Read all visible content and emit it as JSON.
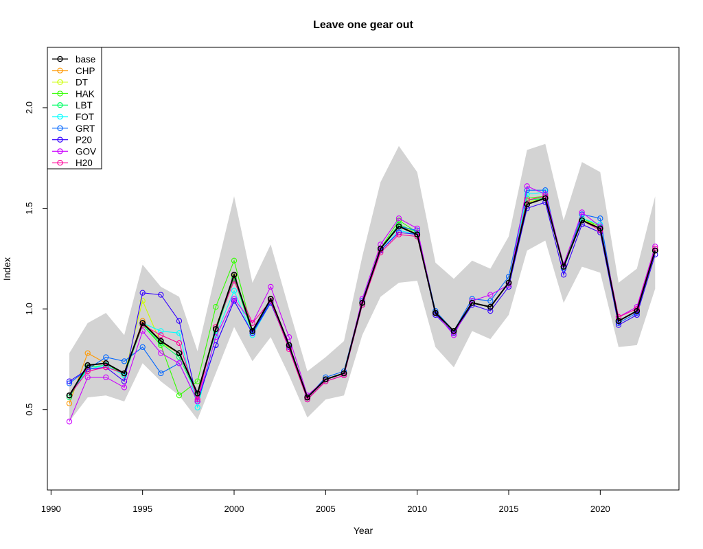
{
  "chart_data": {
    "type": "line",
    "title": "Leave one gear out",
    "xlabel": "Year",
    "ylabel": "Index",
    "xlim": [
      1989.8,
      2024.3
    ],
    "ylim": [
      0.1,
      2.3
    ],
    "x_ticks": [
      1990,
      1995,
      2000,
      2005,
      2010,
      2015,
      2020
    ],
    "y_ticks": [
      0.5,
      1.0,
      1.5,
      2.0
    ],
    "y_tick_labels": [
      "0.5",
      "1.0",
      "1.5",
      "2.0"
    ],
    "legend_position": "top-left",
    "grid": false,
    "x": [
      1991,
      1992,
      1993,
      1994,
      1995,
      1996,
      1997,
      1998,
      1999,
      2000,
      2001,
      2002,
      2003,
      2004,
      2005,
      2006,
      2007,
      2008,
      2009,
      2010,
      2011,
      2012,
      2013,
      2014,
      2015,
      2016,
      2017,
      2018,
      2019,
      2020,
      2021,
      2022,
      2023
    ],
    "band": {
      "color": "#d3d3d3",
      "upper": [
        0.78,
        0.93,
        0.98,
        0.87,
        1.22,
        1.11,
        1.06,
        0.79,
        1.18,
        1.56,
        1.13,
        1.32,
        1.0,
        0.69,
        0.76,
        0.84,
        1.26,
        1.63,
        1.81,
        1.68,
        1.23,
        1.15,
        1.24,
        1.2,
        1.36,
        1.79,
        1.82,
        1.44,
        1.73,
        1.68,
        1.13,
        1.2,
        1.56
      ],
      "lower": [
        0.44,
        0.56,
        0.57,
        0.54,
        0.73,
        0.64,
        0.57,
        0.45,
        0.68,
        0.91,
        0.74,
        0.86,
        0.67,
        0.46,
        0.55,
        0.57,
        0.87,
        1.06,
        1.13,
        1.14,
        0.81,
        0.71,
        0.89,
        0.85,
        0.97,
        1.29,
        1.34,
        1.03,
        1.21,
        1.18,
        0.81,
        0.82,
        1.1
      ]
    },
    "series": [
      {
        "name": "base",
        "color": "#000000",
        "values": [
          0.57,
          0.72,
          0.73,
          0.68,
          0.93,
          0.84,
          0.78,
          0.58,
          0.9,
          1.17,
          0.89,
          1.05,
          0.82,
          0.56,
          0.65,
          0.68,
          1.03,
          1.3,
          1.41,
          1.37,
          0.98,
          0.89,
          1.03,
          1.01,
          1.13,
          1.52,
          1.55,
          1.21,
          1.44,
          1.4,
          0.94,
          0.99,
          1.29
        ]
      },
      {
        "name": "CHP",
        "color": "#ff9900",
        "values": [
          0.53,
          0.78,
          0.73,
          0.68,
          0.94,
          0.84,
          0.78,
          0.58,
          0.9,
          1.17,
          0.89,
          1.05,
          0.82,
          0.56,
          0.65,
          0.68,
          1.03,
          1.3,
          1.41,
          1.37,
          0.98,
          0.89,
          1.03,
          1.01,
          1.13,
          1.54,
          1.56,
          1.21,
          1.44,
          1.4,
          0.94,
          0.99,
          1.29
        ]
      },
      {
        "name": "DT",
        "color": "#ccff00",
        "values": [
          0.57,
          0.71,
          0.72,
          0.67,
          1.04,
          0.83,
          0.78,
          0.58,
          0.91,
          1.16,
          0.89,
          1.05,
          0.82,
          0.56,
          0.65,
          0.68,
          1.03,
          1.3,
          1.42,
          1.37,
          0.98,
          0.89,
          1.03,
          1.01,
          1.13,
          1.53,
          1.55,
          1.21,
          1.45,
          1.4,
          0.94,
          0.99,
          1.29
        ]
      },
      {
        "name": "HAK",
        "color": "#33ff00",
        "values": [
          0.57,
          0.72,
          0.73,
          0.67,
          0.92,
          0.82,
          0.57,
          0.64,
          1.01,
          1.24,
          0.89,
          1.05,
          0.82,
          0.56,
          0.65,
          0.68,
          1.03,
          1.3,
          1.44,
          1.38,
          0.98,
          0.89,
          1.03,
          1.01,
          1.13,
          1.55,
          1.56,
          1.22,
          1.45,
          1.41,
          0.94,
          0.99,
          1.29
        ]
      },
      {
        "name": "LBT",
        "color": "#00ff66",
        "values": [
          0.56,
          0.71,
          0.72,
          0.67,
          0.92,
          0.83,
          0.76,
          0.57,
          0.89,
          1.15,
          0.88,
          1.04,
          0.81,
          0.56,
          0.65,
          0.68,
          1.03,
          1.3,
          1.42,
          1.38,
          0.98,
          0.89,
          1.03,
          1.01,
          1.13,
          1.54,
          1.55,
          1.21,
          1.44,
          1.4,
          0.94,
          0.99,
          1.29
        ]
      },
      {
        "name": "FOT",
        "color": "#00ffff",
        "values": [
          0.57,
          0.7,
          0.72,
          0.67,
          0.93,
          0.89,
          0.88,
          0.51,
          0.87,
          1.09,
          0.87,
          1.03,
          0.81,
          0.56,
          0.65,
          0.68,
          1.03,
          1.29,
          1.39,
          1.37,
          0.98,
          0.89,
          1.03,
          1.01,
          1.13,
          1.57,
          1.58,
          1.2,
          1.45,
          1.42,
          0.94,
          0.99,
          1.29
        ]
      },
      {
        "name": "GRT",
        "color": "#0066ff",
        "values": [
          0.63,
          0.7,
          0.76,
          0.74,
          0.81,
          0.68,
          0.73,
          0.54,
          0.82,
          1.04,
          0.88,
          1.04,
          0.81,
          0.56,
          0.66,
          0.69,
          1.04,
          1.3,
          1.41,
          1.39,
          0.99,
          0.89,
          1.05,
          1.04,
          1.16,
          1.59,
          1.59,
          1.2,
          1.47,
          1.45,
          0.93,
          0.98,
          1.29
        ]
      },
      {
        "name": "P20",
        "color": "#3300ff",
        "values": [
          0.64,
          0.7,
          0.71,
          0.64,
          1.08,
          1.07,
          0.94,
          0.54,
          0.82,
          1.04,
          0.88,
          1.03,
          0.81,
          0.55,
          0.64,
          0.67,
          1.02,
          1.29,
          1.38,
          1.37,
          0.97,
          0.88,
          1.02,
          0.99,
          1.11,
          1.5,
          1.53,
          1.17,
          1.42,
          1.38,
          0.92,
          0.97,
          1.27
        ]
      },
      {
        "name": "GOV",
        "color": "#cc00ff",
        "values": [
          0.44,
          0.66,
          0.66,
          0.61,
          0.89,
          0.78,
          0.73,
          0.54,
          0.86,
          1.05,
          0.93,
          1.11,
          0.86,
          0.57,
          0.65,
          0.68,
          1.05,
          1.32,
          1.45,
          1.4,
          0.98,
          0.87,
          1.04,
          1.07,
          1.12,
          1.61,
          1.57,
          1.22,
          1.48,
          1.41,
          0.96,
          1.01,
          1.31
        ]
      },
      {
        "name": "H20",
        "color": "#ff0099",
        "values": [
          0.57,
          0.69,
          0.71,
          0.68,
          0.92,
          0.87,
          0.83,
          0.55,
          0.91,
          1.14,
          0.93,
          1.04,
          0.8,
          0.55,
          0.64,
          0.67,
          1.02,
          1.28,
          1.37,
          1.36,
          0.98,
          0.89,
          1.03,
          1.01,
          1.13,
          1.54,
          1.56,
          1.21,
          1.44,
          1.39,
          0.96,
          1.0,
          1.3
        ]
      }
    ]
  }
}
